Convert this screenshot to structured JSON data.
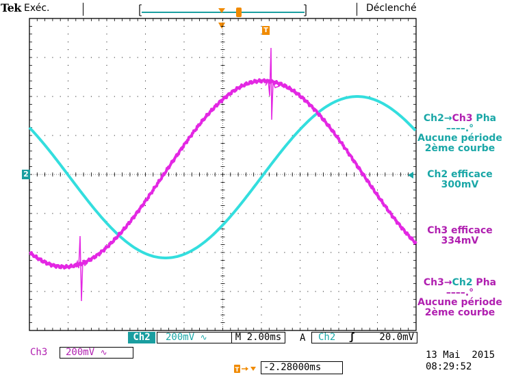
{
  "header": {
    "brand": "Tek",
    "run_state": "Exéc.",
    "trigger_status": "Déclenché",
    "trigger_marker": "T"
  },
  "screen": {
    "channel_marker": "2",
    "ch2_color": "#33dede",
    "ch3_color": "#e327e3",
    "grid_color": "#000000"
  },
  "measurements": {
    "m1": {
      "title_a": "Ch2",
      "title_arrow": "→",
      "title_b": "Ch3",
      "title_c": " Pha",
      "dashes": "––––.°",
      "line1": "Aucune période",
      "line2": "2ème courbe"
    },
    "m2": {
      "line1": "Ch2 efficace",
      "line2": "300mV"
    },
    "m3": {
      "line1": "Ch3 efficace",
      "line2": "334mV"
    },
    "m4": {
      "title_a": "Ch3",
      "title_arrow": "→",
      "title_b": "Ch2",
      "title_c": " Pha",
      "dashes": "––––.°",
      "line1": "Aucune période",
      "line2": "2ème courbe"
    }
  },
  "status_bar": {
    "ch2_label": "Ch2",
    "ch2_scale": "200mV",
    "coupling_symbol": "∿",
    "timebase": "M 2.00ms",
    "trigger_mode": "A",
    "trigger_source": "Ch2",
    "trigger_slope": "ʃ",
    "trigger_level": "20.0mV",
    "ch3_label": "Ch3",
    "ch3_scale": "200mV",
    "position": "-2.28000ms",
    "date": "13 Mai  2015",
    "time": "08:29:52"
  }
}
